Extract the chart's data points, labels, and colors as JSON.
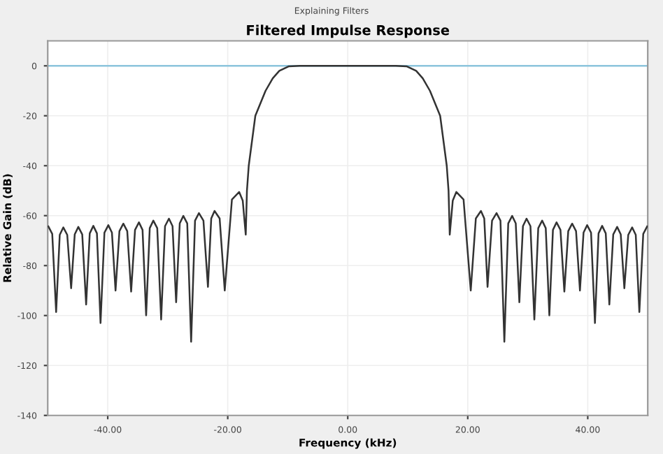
{
  "chart_data": {
    "type": "line",
    "title": "Filtered Impulse Response",
    "xlabel": "Frequency (kHz)",
    "ylabel": "Relative Gain (dB)",
    "annotations": [
      "Explaining Filters"
    ],
    "x": [
      -49.9,
      -49.25,
      -48.6,
      -48.0,
      -47.4,
      -46.75,
      -46.1,
      -45.5,
      -44.9,
      -44.25,
      -43.6,
      -43.0,
      -42.4,
      -41.8,
      -41.2,
      -40.55,
      -39.9,
      -39.3,
      -38.7,
      -38.05,
      -37.4,
      -36.75,
      -36.1,
      -35.45,
      -34.8,
      -34.2,
      -33.6,
      -33.0,
      -32.4,
      -31.75,
      -31.1,
      -30.45,
      -29.8,
      -29.2,
      -28.6,
      -28.0,
      -27.4,
      -26.75,
      -26.1,
      -25.45,
      -24.8,
      -24.05,
      -23.3,
      -22.75,
      -22.2,
      -21.35,
      -20.5,
      -19.3,
      -18.1,
      -17.5,
      -17.0,
      -16.8,
      -16.5,
      -15.4,
      -13.7,
      -12.5,
      -11.4,
      -9.8,
      -8,
      0,
      8,
      9.8,
      11.4,
      12.5,
      13.7,
      15.4,
      16.5,
      16.8,
      17.0,
      17.5,
      18.1,
      19.3,
      20.5,
      21.35,
      22.2,
      22.75,
      23.3,
      24.05,
      24.8,
      25.45,
      26.1,
      26.75,
      27.4,
      28.0,
      28.6,
      29.2,
      29.8,
      30.45,
      31.1,
      31.75,
      32.4,
      33.0,
      33.6,
      34.2,
      34.8,
      35.45,
      36.1,
      36.75,
      37.4,
      38.05,
      38.7,
      39.3,
      39.9,
      40.55,
      41.2,
      41.8,
      42.4,
      43.0,
      43.6,
      44.25,
      44.9,
      45.5,
      46.1,
      46.75,
      47.4,
      48.0,
      48.6,
      49.25,
      49.9
    ],
    "series": [
      {
        "color": "#333333",
        "values": [
          -64.3,
          -67.3,
          -98.6,
          -67.7,
          -64.7,
          -67.7,
          -89.1,
          -67.5,
          -64.5,
          -67.5,
          -95.6,
          -67.1,
          -64.1,
          -67.1,
          -103,
          -66.8,
          -63.8,
          -66.8,
          -90,
          -66.2,
          -63.2,
          -66.2,
          -90.4,
          -65.7,
          -62.7,
          -65.7,
          -99.9,
          -65,
          -62,
          -65,
          -101.6,
          -64.2,
          -61.2,
          -64.2,
          -94.7,
          -63.1,
          -60.1,
          -63.1,
          -110.5,
          -62,
          -59,
          -62,
          -88.5,
          -61.1,
          -58.1,
          -61.1,
          -90,
          -53.5,
          -50.5,
          -54,
          -67.6,
          -50,
          -40,
          -20,
          -10,
          -5,
          -2,
          -0.2,
          0,
          0,
          0,
          -0.2,
          -2,
          -5,
          -10,
          -20,
          -40,
          -50,
          -67.6,
          -54,
          -50.5,
          -53.5,
          -90,
          -61.1,
          -58.1,
          -61.1,
          -88.5,
          -62,
          -59,
          -62,
          -110.5,
          -63.1,
          -60.1,
          -63.1,
          -94.7,
          -64.2,
          -61.2,
          -64.2,
          -101.6,
          -65,
          -62,
          -65,
          -99.9,
          -65.7,
          -62.7,
          -65.7,
          -90.4,
          -66.2,
          -63.2,
          -66.2,
          -90,
          -66.8,
          -63.8,
          -66.8,
          -103,
          -67.1,
          -64.1,
          -67.1,
          -95.6,
          -67.5,
          -64.5,
          -67.5,
          -89.1,
          -67.7,
          -64.7,
          -67.7,
          -98.6,
          -67.3,
          -64.3
        ]
      }
    ],
    "xlim": [
      -50,
      50
    ],
    "ylim": [
      -140,
      10
    ],
    "xticks": [
      {
        "value": -40,
        "label": "-40.00"
      },
      {
        "value": -20,
        "label": "-20.00"
      },
      {
        "value": 0,
        "label": "0.00"
      },
      {
        "value": 20,
        "label": "20.00"
      },
      {
        "value": 40,
        "label": "40.00"
      }
    ],
    "yticks": [
      0,
      -20,
      -40,
      -60,
      -80,
      -100,
      -120,
      -140
    ],
    "ref_lines": [
      {
        "axis": "y",
        "value": 0,
        "label": null,
        "color": "#8cc4dc"
      }
    ],
    "grid": true,
    "marker": "none",
    "line_style": "solid"
  }
}
